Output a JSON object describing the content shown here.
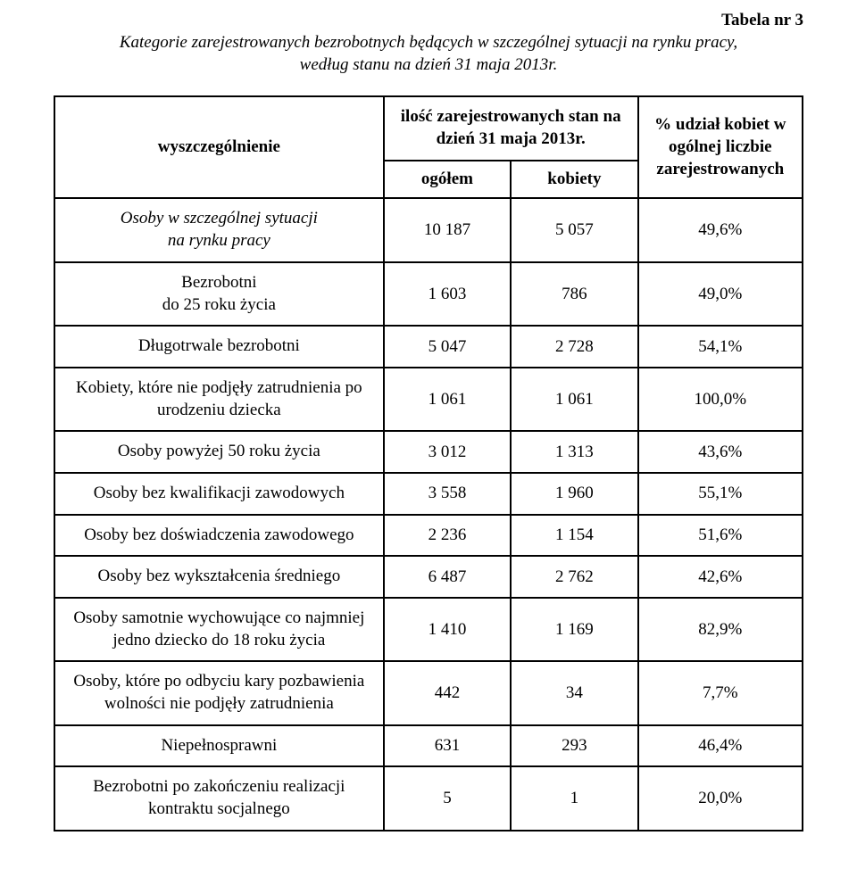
{
  "table_label": "Tabela nr 3",
  "caption_line1": "Kategorie zarejestrowanych bezrobotnych będących w szczególnej sytuacji na rynku pracy,",
  "caption_line2": "według stanu na dzień 31 maja 2013r.",
  "headers": {
    "col1": "wyszczególnienie",
    "col2_top": "ilość zarejestrowanych stan na dzień 31 maja 2013r.",
    "col2a": "ogółem",
    "col2b": "kobiety",
    "col3": "% udział kobiet w ogólnej liczbie zarejestrowanych"
  },
  "rows": [
    {
      "label_html": "Osoby w szczególnej sytuacji<br>na rynku pracy",
      "italic": true,
      "ogolem": "10 187",
      "kobiety": "5 057",
      "pct": "49,6%"
    },
    {
      "label_html": "Bezrobotni<br>do 25 roku życia",
      "italic": false,
      "ogolem": "1 603",
      "kobiety": "786",
      "pct": "49,0%"
    },
    {
      "label_html": "Długotrwale bezrobotni",
      "italic": false,
      "ogolem": "5 047",
      "kobiety": "2 728",
      "pct": "54,1%"
    },
    {
      "label_html": "Kobiety, które nie podjęły zatrudnienia po urodzeniu dziecka",
      "italic": false,
      "ogolem": "1 061",
      "kobiety": "1 061",
      "pct": "100,0%"
    },
    {
      "label_html": "Osoby powyżej 50 roku życia",
      "italic": false,
      "ogolem": "3 012",
      "kobiety": "1 313",
      "pct": "43,6%"
    },
    {
      "label_html": "Osoby bez kwalifikacji zawodowych",
      "italic": false,
      "ogolem": "3 558",
      "kobiety": "1 960",
      "pct": "55,1%"
    },
    {
      "label_html": "Osoby bez doświadczenia zawodowego",
      "italic": false,
      "ogolem": "2 236",
      "kobiety": "1 154",
      "pct": "51,6%"
    },
    {
      "label_html": "Osoby bez wykształcenia średniego",
      "italic": false,
      "ogolem": "6 487",
      "kobiety": "2 762",
      "pct": "42,6%"
    },
    {
      "label_html": "Osoby samotnie wychowujące co najmniej jedno dziecko do 18 roku życia",
      "italic": false,
      "ogolem": "1 410",
      "kobiety": "1 169",
      "pct": "82,9%"
    },
    {
      "label_html": "Osoby, które po odbyciu kary pozbawienia wolności nie podjęły zatrudnienia",
      "italic": false,
      "ogolem": "442",
      "kobiety": "34",
      "pct": "7,7%"
    },
    {
      "label_html": "Niepełnosprawni",
      "italic": false,
      "ogolem": "631",
      "kobiety": "293",
      "pct": "46,4%"
    },
    {
      "label_html": "Bezrobotni po zakończeniu realizacji kontraktu socjalnego",
      "italic": false,
      "ogolem": "5",
      "kobiety": "1",
      "pct": "20,0%"
    }
  ],
  "col_widths": {
    "c1": "44%",
    "c2a": "17%",
    "c2b": "17%",
    "c3": "22%"
  }
}
